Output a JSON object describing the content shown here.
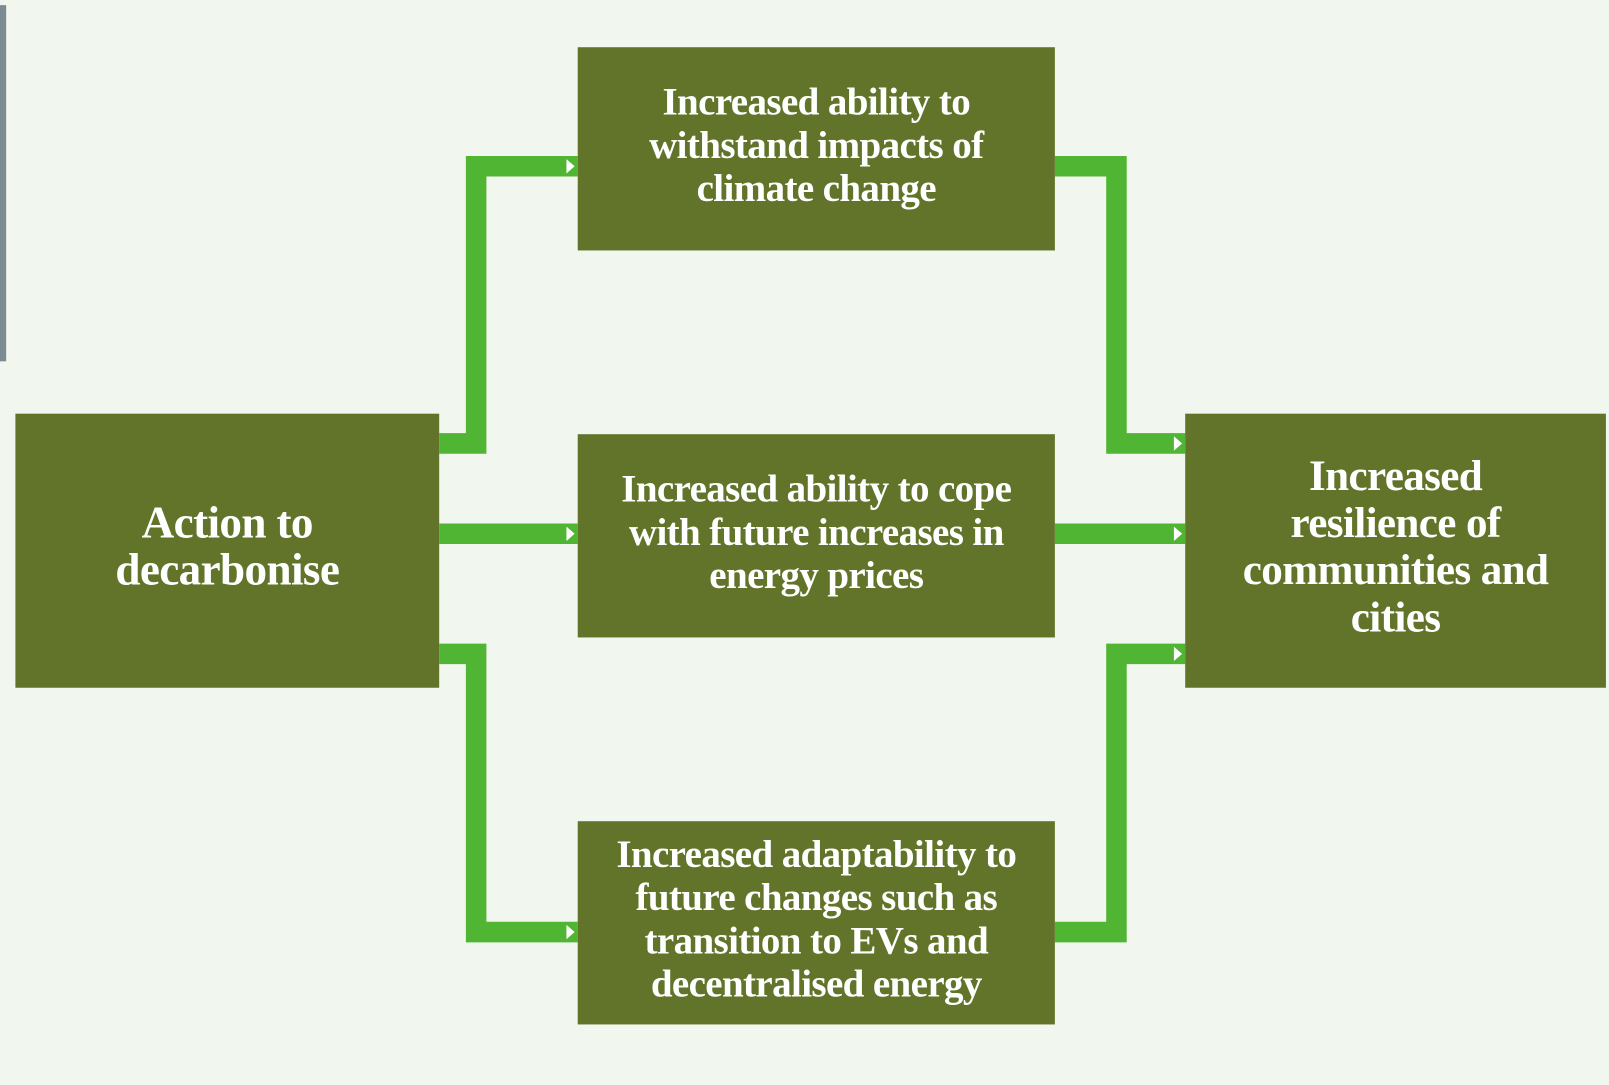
{
  "nodes": [
    {
      "lines": [
        "Action to",
        "decarbonise"
      ]
    },
    {
      "lines": [
        "Increased ability to",
        "withstand impacts of",
        "climate change"
      ]
    },
    {
      "lines": [
        "Increased ability to cope",
        "with future increases in",
        "energy prices"
      ]
    },
    {
      "lines": [
        "Increased adaptability to",
        "future changes such as",
        "transition to EVs and",
        "decentralised energy"
      ]
    },
    {
      "lines": [
        "Increased",
        "resilience of",
        "communities and",
        "cities"
      ]
    }
  ]
}
